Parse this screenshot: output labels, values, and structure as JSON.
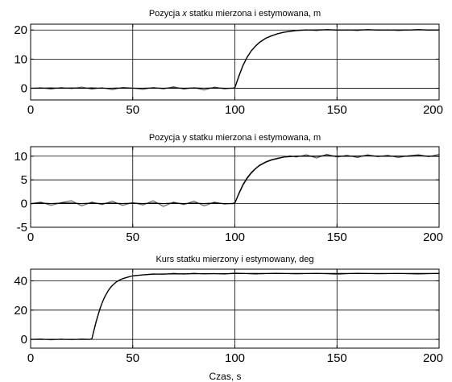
{
  "chart_data": [
    {
      "type": "line",
      "title": "Pozycja x statku mierzona i estymowana, m",
      "title_parts": [
        "Pozycja ",
        "x",
        " statku mierzona i estymowana, m"
      ],
      "xlabel": "",
      "ylabel": "",
      "xlim": [
        0,
        200
      ],
      "ylim": [
        -4,
        22
      ],
      "xticks": [
        "0",
        "50",
        "100",
        "150",
        "200"
      ],
      "yticks": [
        "0",
        "10",
        "20"
      ],
      "grid": true,
      "series": [
        {
          "color": "#555555",
          "x": [
            0,
            5,
            10,
            15,
            20,
            25,
            30,
            35,
            40,
            45,
            50,
            55,
            60,
            65,
            70,
            75,
            80,
            85,
            90,
            95,
            99,
            100,
            102,
            104,
            106,
            108,
            110,
            112,
            115,
            118,
            121,
            124,
            127,
            130,
            135,
            140,
            145,
            150,
            155,
            160,
            165,
            170,
            175,
            180,
            185,
            190,
            195,
            200
          ],
          "y": [
            0.0,
            0.2,
            -0.3,
            0.3,
            -0.1,
            0.4,
            -0.3,
            0.2,
            -0.5,
            0.3,
            0.1,
            -0.4,
            0.3,
            -0.2,
            0.5,
            -0.3,
            0.2,
            -0.6,
            0.4,
            -0.2,
            0.1,
            0.2,
            4.5,
            8.0,
            10.8,
            12.9,
            14.5,
            15.8,
            17.2,
            18.1,
            18.8,
            19.3,
            19.6,
            19.9,
            20.1,
            19.8,
            20.2,
            19.9,
            20.1,
            19.8,
            20.2,
            19.9,
            20.1,
            19.8,
            20.0,
            20.2,
            19.9,
            20.1
          ]
        },
        {
          "color": "#000000",
          "x": [
            0,
            5,
            10,
            15,
            20,
            25,
            30,
            35,
            40,
            45,
            50,
            55,
            60,
            65,
            70,
            75,
            80,
            85,
            90,
            95,
            99,
            100,
            102,
            104,
            106,
            108,
            110,
            112,
            115,
            118,
            121,
            124,
            127,
            130,
            135,
            140,
            145,
            150,
            155,
            160,
            165,
            170,
            175,
            180,
            185,
            190,
            195,
            200
          ],
          "y": [
            0.0,
            0.0,
            0.1,
            0.0,
            0.1,
            0.0,
            0.1,
            0.0,
            0.0,
            0.1,
            0.0,
            0.0,
            0.1,
            0.0,
            0.1,
            0.0,
            0.1,
            0.0,
            0.1,
            0.0,
            0.0,
            0.2,
            4.2,
            7.8,
            10.6,
            12.8,
            14.4,
            15.7,
            17.1,
            18.0,
            18.7,
            19.2,
            19.5,
            19.8,
            20.0,
            20.0,
            20.1,
            20.0,
            20.0,
            20.0,
            20.1,
            20.0,
            20.0,
            20.0,
            20.0,
            20.1,
            20.0,
            20.0
          ]
        }
      ]
    },
    {
      "type": "line",
      "title": "Pozycja y statku mierzona i estymowana, m",
      "title_parts": [
        "Pozycja y statku mierzona i estymowana, m"
      ],
      "xlabel": "",
      "ylabel": "",
      "xlim": [
        0,
        200
      ],
      "ylim": [
        -5,
        12
      ],
      "xticks": [
        "0",
        "50",
        "100",
        "150",
        "200"
      ],
      "yticks": [
        "-5",
        "0",
        "5",
        "10"
      ],
      "grid": true,
      "series": [
        {
          "color": "#555555",
          "x": [
            0,
            5,
            10,
            15,
            20,
            25,
            30,
            35,
            40,
            45,
            50,
            55,
            60,
            65,
            70,
            75,
            80,
            85,
            90,
            95,
            99,
            100,
            102,
            104,
            106,
            108,
            110,
            112,
            115,
            118,
            121,
            124,
            127,
            130,
            135,
            140,
            145,
            150,
            155,
            160,
            165,
            170,
            175,
            180,
            185,
            190,
            195,
            200
          ],
          "y": [
            0.0,
            0.3,
            -0.4,
            0.2,
            0.6,
            -0.5,
            0.3,
            -0.2,
            0.5,
            -0.4,
            0.2,
            -0.3,
            0.6,
            -0.6,
            0.3,
            -0.2,
            0.5,
            -0.5,
            0.3,
            -0.1,
            0.1,
            0.2,
            2.3,
            4.1,
            5.5,
            6.6,
            7.4,
            8.1,
            8.8,
            9.3,
            9.6,
            9.8,
            10.1,
            9.8,
            10.3,
            9.6,
            10.4,
            9.8,
            10.2,
            9.7,
            10.3,
            9.9,
            10.2,
            9.7,
            10.1,
            10.3,
            9.9,
            10.4
          ]
        },
        {
          "color": "#000000",
          "x": [
            0,
            5,
            10,
            15,
            20,
            25,
            30,
            35,
            40,
            45,
            50,
            55,
            60,
            65,
            70,
            75,
            80,
            85,
            90,
            95,
            99,
            100,
            102,
            104,
            106,
            108,
            110,
            112,
            115,
            118,
            121,
            124,
            127,
            130,
            135,
            140,
            145,
            150,
            155,
            160,
            165,
            170,
            175,
            180,
            185,
            190,
            195,
            200
          ],
          "y": [
            0.0,
            0.1,
            0.0,
            0.1,
            0.1,
            0.0,
            0.1,
            0.0,
            0.1,
            0.0,
            0.1,
            0.0,
            0.1,
            0.0,
            0.1,
            0.0,
            0.1,
            0.0,
            0.1,
            0.0,
            0.0,
            0.1,
            2.1,
            3.9,
            5.3,
            6.4,
            7.3,
            8.0,
            8.7,
            9.2,
            9.5,
            9.8,
            9.9,
            10.0,
            10.0,
            10.0,
            10.1,
            10.0,
            10.0,
            10.0,
            10.1,
            10.0,
            10.0,
            10.0,
            10.0,
            10.1,
            10.0,
            10.0
          ]
        }
      ]
    },
    {
      "type": "line",
      "title": "Kurs statku mierzony i estymowany, deg",
      "title_parts": [
        "Kurs statku mierzony i estymowany, deg"
      ],
      "xlabel": "Czas, s",
      "ylabel": "",
      "xlim": [
        0,
        200
      ],
      "ylim": [
        -6,
        48
      ],
      "xticks": [
        "0",
        "50",
        "100",
        "150",
        "200"
      ],
      "yticks": [
        "0",
        "20",
        "40"
      ],
      "grid": true,
      "series": [
        {
          "color": "#555555",
          "x": [
            0,
            5,
            10,
            15,
            20,
            25,
            29,
            30,
            31,
            32,
            33,
            34,
            35,
            36,
            37,
            38,
            39,
            40,
            42,
            44,
            46,
            48,
            50,
            55,
            60,
            65,
            70,
            75,
            80,
            85,
            90,
            95,
            100,
            110,
            120,
            130,
            140,
            150,
            160,
            170,
            180,
            190,
            200
          ],
          "y": [
            0.0,
            0.3,
            -0.3,
            0.2,
            -0.2,
            0.3,
            0.0,
            0.5,
            6.5,
            12.0,
            17.0,
            21.5,
            25.0,
            28.5,
            31.0,
            33.5,
            35.5,
            37.0,
            39.5,
            41.0,
            42.0,
            42.8,
            43.5,
            44.2,
            44.8,
            44.4,
            45.2,
            44.6,
            45.3,
            44.7,
            45.1,
            44.6,
            45.4,
            44.6,
            45.3,
            44.7,
            45.2,
            44.5,
            45.3,
            44.8,
            45.1,
            44.6,
            45.2
          ]
        },
        {
          "color": "#000000",
          "x": [
            0,
            5,
            10,
            15,
            20,
            25,
            29,
            30,
            31,
            32,
            33,
            34,
            35,
            36,
            37,
            38,
            39,
            40,
            42,
            44,
            46,
            48,
            50,
            55,
            60,
            65,
            70,
            75,
            80,
            85,
            90,
            95,
            100,
            110,
            120,
            130,
            140,
            150,
            160,
            170,
            180,
            190,
            200
          ],
          "y": [
            0.0,
            0.0,
            0.0,
            0.0,
            0.0,
            0.0,
            0.0,
            0.3,
            6.0,
            11.5,
            16.5,
            21.0,
            24.8,
            28.2,
            30.8,
            33.2,
            35.2,
            36.8,
            39.3,
            40.9,
            41.9,
            42.7,
            43.4,
            44.1,
            44.6,
            44.7,
            44.8,
            44.8,
            44.9,
            44.9,
            44.9,
            44.9,
            45.0,
            45.0,
            45.0,
            45.0,
            45.0,
            45.0,
            45.0,
            45.0,
            45.0,
            45.0,
            45.0
          ]
        }
      ]
    }
  ]
}
